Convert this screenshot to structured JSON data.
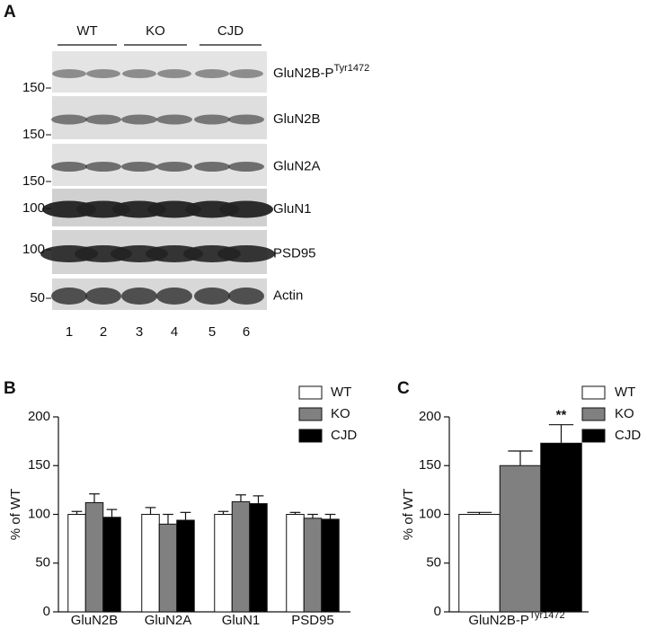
{
  "blot": {
    "panel_label": "A",
    "groups": [
      "WT",
      "KO",
      "CJD"
    ],
    "lanes": [
      "1",
      "2",
      "3",
      "4",
      "5",
      "6"
    ],
    "rows": [
      {
        "label": "GluN2B-P",
        "sup": "Tyr1472",
        "marker": "150"
      },
      {
        "label": "GluN2B",
        "marker": "150"
      },
      {
        "label": "GluN2A",
        "marker": "150"
      },
      {
        "label": "GluN1",
        "marker": "100"
      },
      {
        "label": "PSD95",
        "marker": "100"
      },
      {
        "label": "Actin",
        "marker": "50"
      }
    ]
  },
  "chart_data": [
    {
      "type": "bar",
      "panel_label": "B",
      "y_label": "% of WT",
      "categories": [
        "GluN2B",
        "GluN2A",
        "GluN1",
        "PSD95"
      ],
      "series": [
        {
          "name": "WT",
          "color": "#ffffff",
          "values": [
            100,
            100,
            100,
            100
          ],
          "errors": [
            3,
            7,
            3,
            2
          ]
        },
        {
          "name": "KO",
          "color": "#808080",
          "values": [
            112,
            90,
            113,
            96
          ],
          "errors": [
            9,
            10,
            7,
            4
          ]
        },
        {
          "name": "CJD",
          "color": "#000000",
          "values": [
            97,
            94,
            111,
            95
          ],
          "errors": [
            8,
            8,
            8,
            5
          ]
        }
      ],
      "ylim": [
        0,
        200
      ],
      "yticks": [
        0,
        50,
        100,
        150,
        200
      ],
      "legend": "upper right"
    },
    {
      "type": "bar",
      "panel_label": "C",
      "y_label": "% of WT",
      "categories": [
        {
          "text": "GluN2B-P",
          "sup": "Tyr1472"
        }
      ],
      "series": [
        {
          "name": "WT",
          "color": "#ffffff",
          "values": [
            100
          ],
          "errors": [
            2
          ]
        },
        {
          "name": "KO",
          "color": "#808080",
          "values": [
            150
          ],
          "errors": [
            15
          ]
        },
        {
          "name": "CJD",
          "color": "#000000",
          "values": [
            173
          ],
          "errors": [
            19
          ]
        }
      ],
      "annotation": "**",
      "ylim": [
        0,
        200
      ],
      "yticks": [
        0,
        50,
        100,
        150,
        200
      ],
      "legend": "upper right"
    }
  ]
}
